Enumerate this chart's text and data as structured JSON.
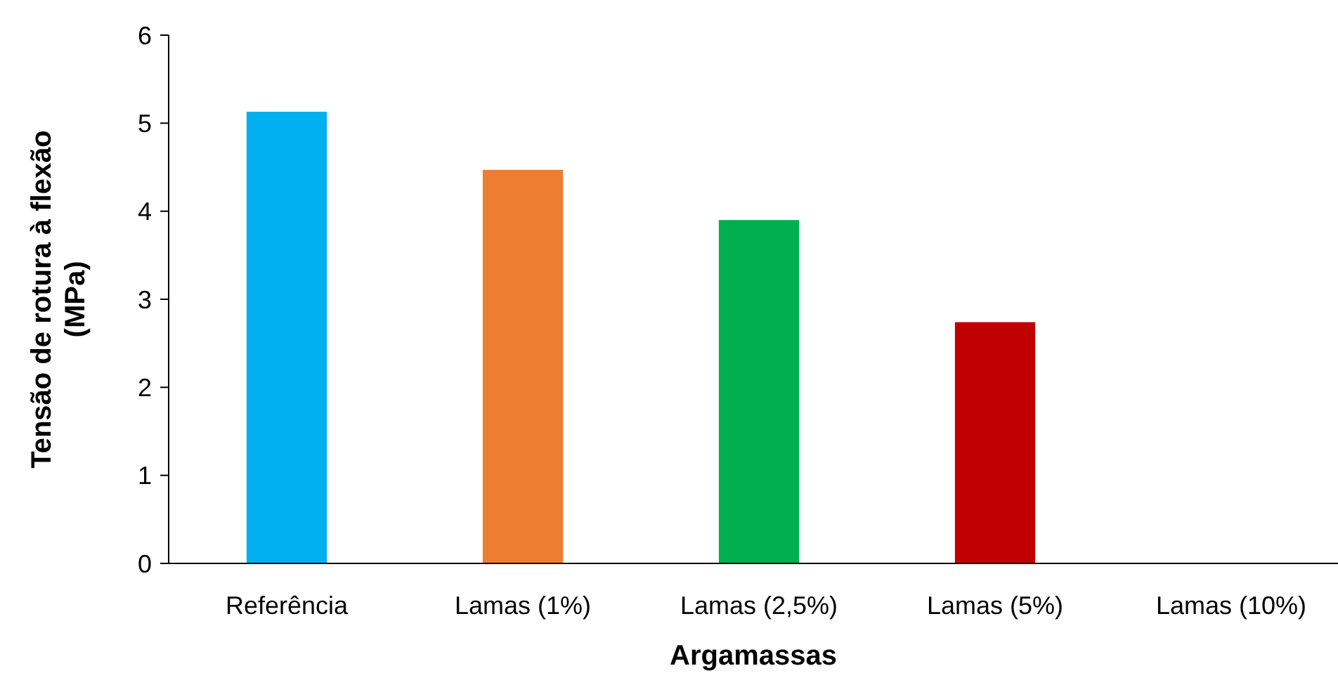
{
  "chart_data": {
    "type": "bar",
    "xlabel": "Argamassas",
    "ylabel": "Tensão de rotura à flexão (MPa)",
    "categories": [
      "Referência",
      "Lamas (1%)",
      "Lamas (2,5%)",
      "Lamas (5%)",
      "Lamas (10%)"
    ],
    "values": [
      5.13,
      4.47,
      3.9,
      2.74,
      0
    ],
    "colors": [
      "#00b0f0",
      "#ed7d31",
      "#00b050",
      "#c00000",
      "#7030a0"
    ],
    "ylim": [
      0,
      6
    ],
    "yticks": [
      0,
      1,
      2,
      3,
      4,
      5,
      6
    ],
    "grid": false
  }
}
